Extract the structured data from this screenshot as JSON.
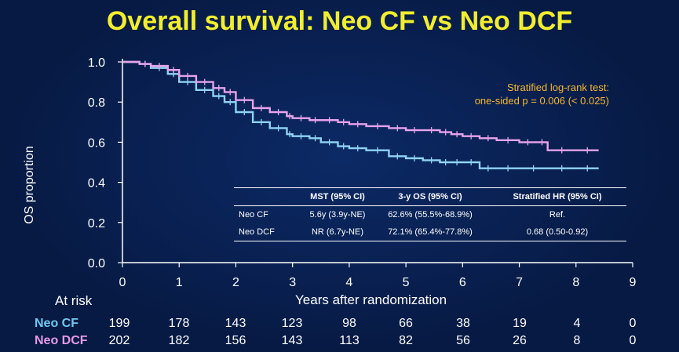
{
  "title": "Overall survival: Neo CF vs Neo DCF",
  "test_note": {
    "line1": "Stratified log-rank test:",
    "line2": "one-sided p = 0.006 (< 0.025)"
  },
  "table": {
    "headers": [
      "",
      "MST (95% CI)",
      "3-y OS (95% CI)",
      "Stratified HR (95% CI)"
    ],
    "rows": [
      [
        "Neo CF",
        "5.6y (3.9y-NE)",
        "62.6% (55.5%-68.9%)",
        "Ref."
      ],
      [
        "Neo DCF",
        "NR (6.7y-NE)",
        "72.1% (65.4%-77.8%)",
        "0.68 (0.50-0.92)"
      ]
    ]
  },
  "at_risk": {
    "label": "At risk",
    "rows": [
      {
        "name": "Neo CF",
        "color": "#6fc8ef",
        "values": [
          "199",
          "178",
          "143",
          "123",
          "98",
          "66",
          "38",
          "19",
          "4",
          "0"
        ]
      },
      {
        "name": "Neo DCF",
        "color": "#e59ae9",
        "values": [
          "202",
          "182",
          "156",
          "143",
          "113",
          "82",
          "56",
          "26",
          "8",
          "0"
        ]
      }
    ]
  },
  "chart_data": {
    "type": "line",
    "title": "Overall survival: Neo CF vs Neo DCF",
    "xlabel": "Years after randomization",
    "ylabel": "OS proportion",
    "xlim": [
      0,
      9
    ],
    "ylim": [
      0,
      1
    ],
    "x_ticks": [
      "0",
      "1",
      "2",
      "3",
      "4",
      "5",
      "6",
      "7",
      "8",
      "9"
    ],
    "y_ticks": [
      "0.0",
      "0.2",
      "0.4",
      "0.6",
      "0.8",
      "1.0"
    ],
    "series": [
      {
        "name": "Neo CF",
        "color": "#8fd3f4",
        "x": [
          0,
          0.3,
          0.5,
          0.8,
          1.0,
          1.3,
          1.6,
          1.8,
          2.0,
          2.3,
          2.6,
          2.9,
          3.0,
          3.3,
          3.5,
          3.8,
          4.0,
          4.3,
          4.7,
          5.0,
          5.3,
          5.6,
          5.8,
          6.0,
          6.3,
          6.6,
          7.0,
          7.5,
          8.0,
          8.4
        ],
        "y": [
          1.0,
          0.99,
          0.97,
          0.94,
          0.9,
          0.86,
          0.83,
          0.8,
          0.75,
          0.7,
          0.67,
          0.64,
          0.63,
          0.62,
          0.6,
          0.58,
          0.57,
          0.56,
          0.53,
          0.52,
          0.51,
          0.5,
          0.5,
          0.5,
          0.47,
          0.47,
          0.47,
          0.47,
          0.47,
          0.47
        ]
      },
      {
        "name": "Neo DCF",
        "color": "#e7a3ec",
        "x": [
          0,
          0.3,
          0.5,
          0.8,
          1.0,
          1.3,
          1.6,
          1.8,
          2.0,
          2.3,
          2.6,
          2.9,
          3.0,
          3.3,
          3.5,
          3.8,
          4.0,
          4.3,
          4.7,
          5.0,
          5.3,
          5.6,
          5.8,
          6.0,
          6.3,
          6.6,
          7.0,
          7.3,
          7.5,
          8.0,
          8.4
        ],
        "y": [
          1.0,
          0.99,
          0.98,
          0.96,
          0.93,
          0.9,
          0.87,
          0.85,
          0.81,
          0.77,
          0.75,
          0.73,
          0.72,
          0.71,
          0.71,
          0.7,
          0.69,
          0.68,
          0.67,
          0.66,
          0.66,
          0.65,
          0.64,
          0.63,
          0.62,
          0.61,
          0.6,
          0.6,
          0.56,
          0.56,
          0.56
        ]
      }
    ]
  }
}
